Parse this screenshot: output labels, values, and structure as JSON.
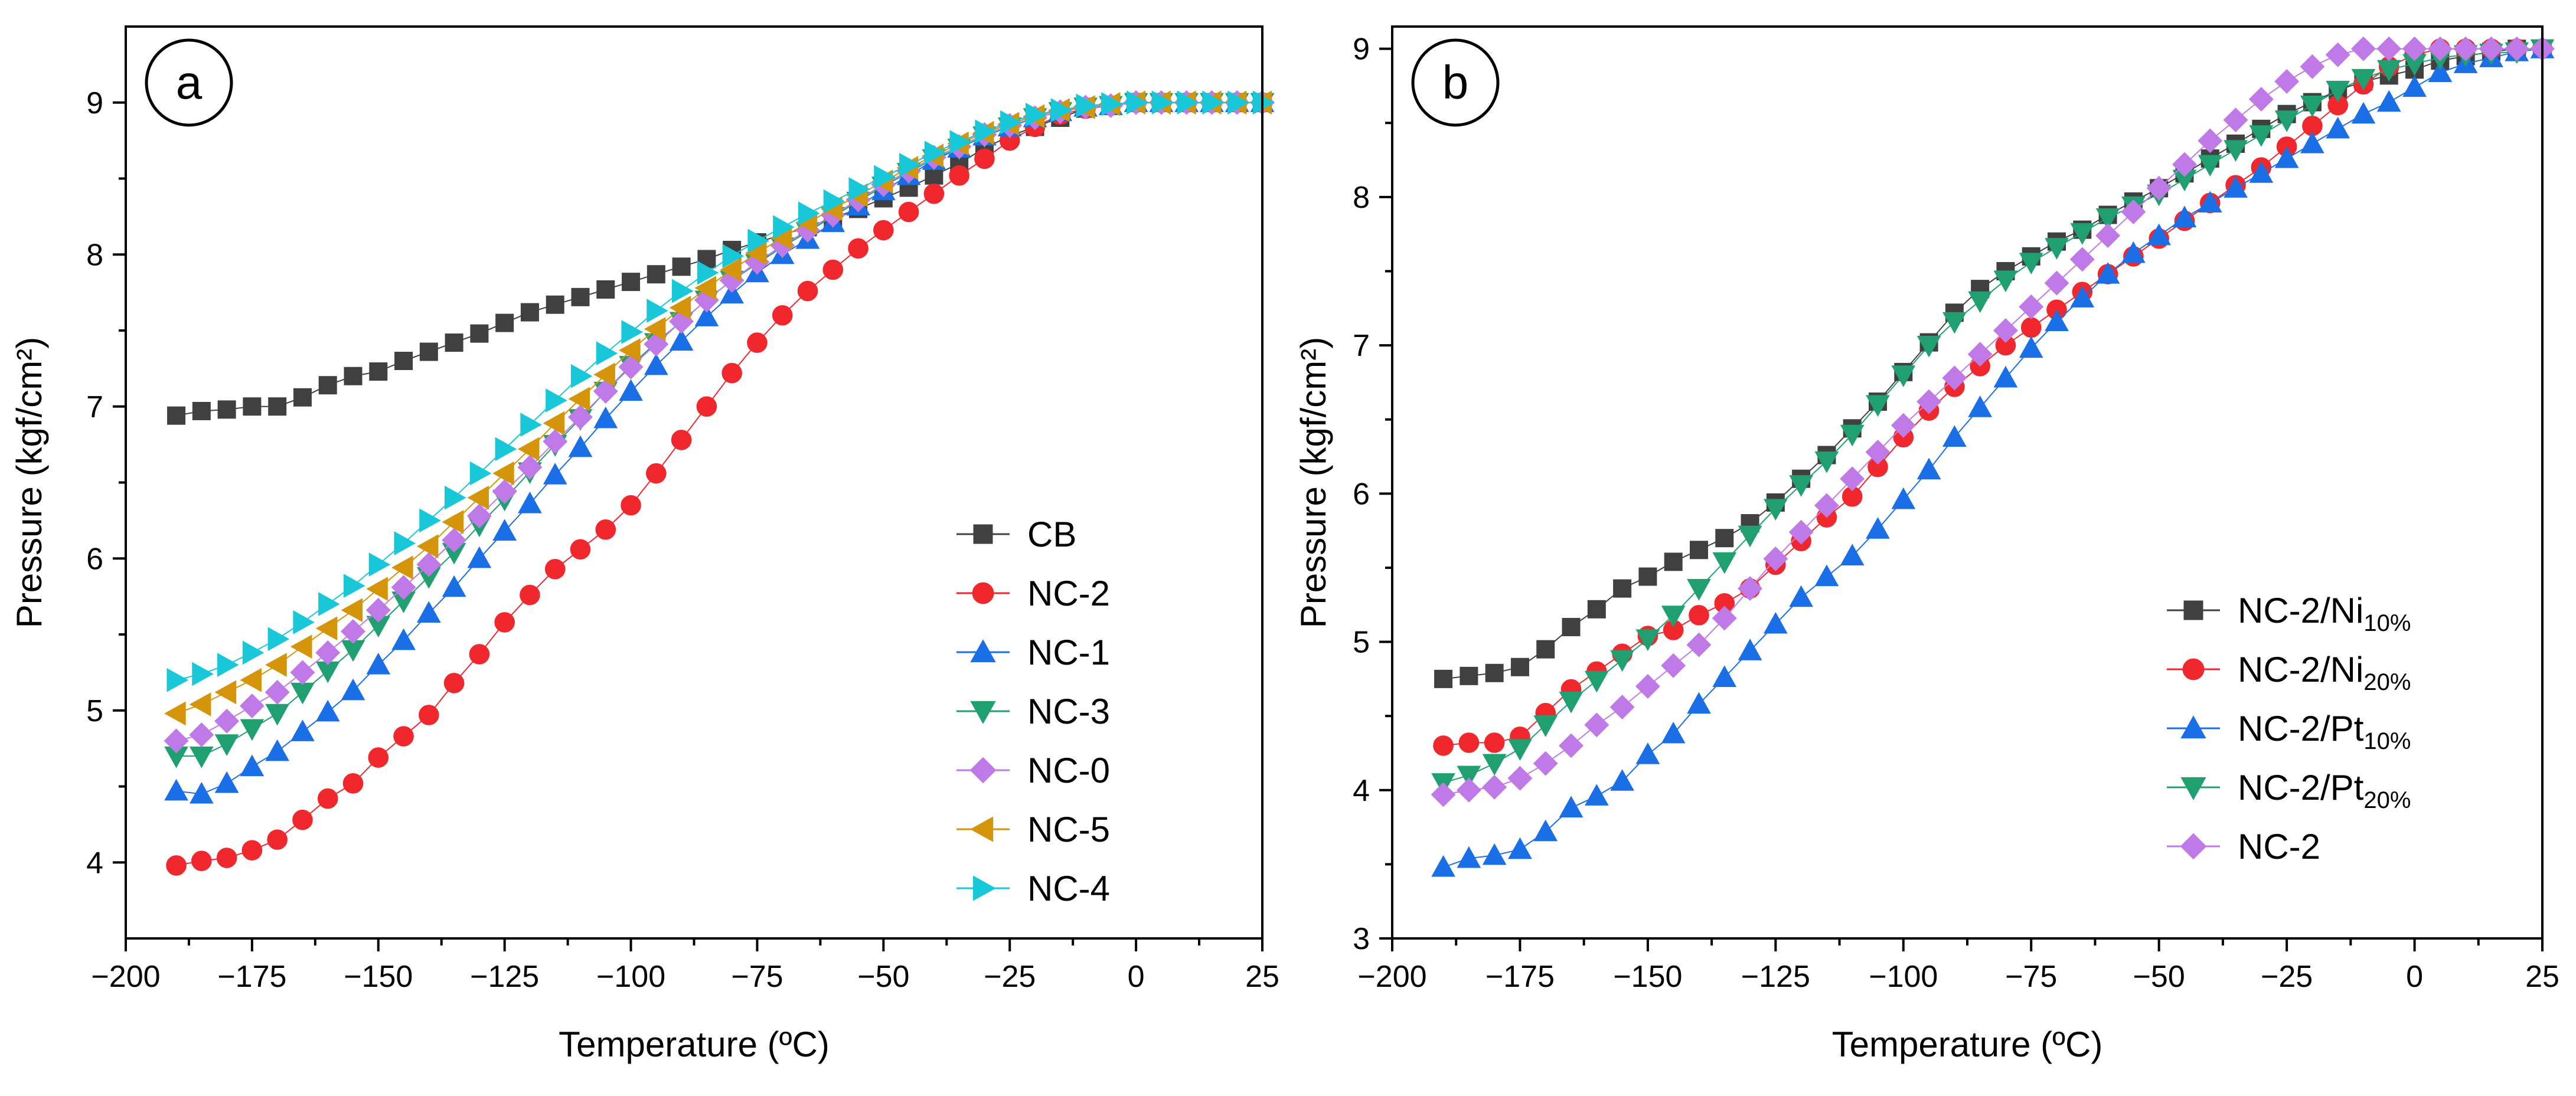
{
  "chart_data": [
    {
      "type": "line",
      "panel_label": "a",
      "xlabel": "Temperature (ºC)",
      "ylabel": "Pressure (kgf/cm²)",
      "xlim": [
        -200,
        25
      ],
      "ylim": [
        3.5,
        9.5
      ],
      "x_ticks": [
        -200,
        -175,
        -150,
        -125,
        -100,
        -75,
        -50,
        -25,
        0,
        25
      ],
      "x_tick_labels": [
        "−200",
        "−175",
        "−150",
        "−125",
        "−100",
        "−75",
        "−50",
        "−25",
        "0",
        "25"
      ],
      "y_ticks": [
        4,
        5,
        6,
        7,
        8,
        9
      ],
      "y_tick_labels": [
        "4",
        "5",
        "6",
        "7",
        "8",
        "9"
      ],
      "legend_position": "bottom-right",
      "x": [
        -190,
        -185,
        -180,
        -175,
        -170,
        -165,
        -160,
        -155,
        -150,
        -145,
        -140,
        -135,
        -130,
        -125,
        -120,
        -115,
        -110,
        -105,
        -100,
        -95,
        -90,
        -85,
        -80,
        -75,
        -70,
        -65,
        -60,
        -55,
        -50,
        -45,
        -40,
        -35,
        -30,
        -25,
        -20,
        -15,
        -10,
        -5,
        0,
        5,
        10,
        15,
        20,
        25
      ],
      "series": [
        {
          "name": "CB",
          "label": "CB",
          "sub": "",
          "color": "#404040",
          "marker": "square",
          "values": [
            6.94,
            6.97,
            6.98,
            7.0,
            7.0,
            7.06,
            7.14,
            7.2,
            7.23,
            7.3,
            7.36,
            7.42,
            7.48,
            7.55,
            7.62,
            7.67,
            7.72,
            7.77,
            7.82,
            7.87,
            7.92,
            7.97,
            8.03,
            8.08,
            8.13,
            8.18,
            8.24,
            8.3,
            8.37,
            8.44,
            8.52,
            8.6,
            8.7,
            8.78,
            8.84,
            8.9,
            8.96,
            8.98,
            9.0,
            9.0,
            9.0,
            9.0,
            9.0,
            9.0
          ]
        },
        {
          "name": "NC-2",
          "label": "NC-2",
          "sub": "",
          "color": "#f0282d",
          "marker": "circle",
          "values": [
            3.98,
            4.01,
            4.03,
            4.08,
            4.15,
            4.28,
            4.42,
            4.52,
            4.69,
            4.83,
            4.97,
            5.18,
            5.37,
            5.58,
            5.76,
            5.93,
            6.06,
            6.19,
            6.35,
            6.56,
            6.78,
            7.0,
            7.22,
            7.42,
            7.6,
            7.76,
            7.9,
            8.04,
            8.16,
            8.28,
            8.4,
            8.52,
            8.63,
            8.75,
            8.84,
            8.92,
            8.96,
            8.98,
            9.0,
            9.0,
            9.0,
            9.0,
            9.0,
            9.0
          ]
        },
        {
          "name": "NC-1",
          "label": "NC-1",
          "sub": "",
          "color": "#1a6ee6",
          "marker": "triangle-up",
          "values": [
            4.47,
            4.45,
            4.52,
            4.63,
            4.73,
            4.86,
            4.99,
            5.13,
            5.3,
            5.46,
            5.64,
            5.81,
            6.0,
            6.18,
            6.36,
            6.55,
            6.73,
            6.92,
            7.1,
            7.27,
            7.43,
            7.59,
            7.74,
            7.88,
            8.0,
            8.1,
            8.21,
            8.32,
            8.42,
            8.52,
            8.62,
            8.7,
            8.78,
            8.84,
            8.9,
            8.94,
            8.97,
            8.98,
            9.0,
            9.0,
            9.0,
            9.0,
            9.0,
            9.0
          ]
        },
        {
          "name": "NC-3",
          "label": "NC-3",
          "sub": "",
          "color": "#20a070",
          "marker": "triangle-down",
          "values": [
            4.7,
            4.7,
            4.78,
            4.88,
            4.98,
            5.12,
            5.26,
            5.4,
            5.56,
            5.72,
            5.88,
            6.04,
            6.22,
            6.39,
            6.57,
            6.75,
            6.92,
            7.1,
            7.27,
            7.42,
            7.56,
            7.7,
            7.83,
            7.94,
            8.05,
            8.15,
            8.25,
            8.35,
            8.45,
            8.54,
            8.63,
            8.7,
            8.78,
            8.84,
            8.9,
            8.94,
            8.97,
            8.98,
            9.0,
            9.0,
            9.0,
            9.0,
            9.0,
            9.0
          ]
        },
        {
          "name": "NC-0",
          "label": "NC-0",
          "sub": "",
          "color": "#c07ae8",
          "marker": "diamond",
          "values": [
            4.8,
            4.84,
            4.93,
            5.03,
            5.12,
            5.25,
            5.38,
            5.52,
            5.66,
            5.81,
            5.96,
            6.12,
            6.28,
            6.44,
            6.6,
            6.77,
            6.93,
            7.1,
            7.26,
            7.41,
            7.56,
            7.7,
            7.83,
            7.95,
            8.06,
            8.16,
            8.26,
            8.36,
            8.46,
            8.55,
            8.64,
            8.71,
            8.79,
            8.85,
            8.9,
            8.94,
            8.97,
            8.98,
            9.0,
            9.0,
            9.0,
            9.0,
            9.0,
            9.0
          ]
        },
        {
          "name": "NC-5",
          "label": "NC-5",
          "sub": "",
          "color": "#d4950a",
          "marker": "triangle-left",
          "values": [
            4.98,
            5.04,
            5.12,
            5.2,
            5.3,
            5.42,
            5.54,
            5.66,
            5.8,
            5.94,
            6.08,
            6.24,
            6.4,
            6.56,
            6.72,
            6.89,
            7.05,
            7.21,
            7.37,
            7.51,
            7.65,
            7.78,
            7.9,
            8.01,
            8.11,
            8.21,
            8.3,
            8.39,
            8.48,
            8.57,
            8.65,
            8.73,
            8.8,
            8.86,
            8.91,
            8.95,
            8.97,
            8.99,
            9.0,
            9.0,
            9.0,
            9.0,
            9.0,
            9.0
          ]
        },
        {
          "name": "NC-4",
          "label": "NC-4",
          "sub": "",
          "color": "#18c8d8",
          "marker": "triangle-right",
          "values": [
            5.2,
            5.24,
            5.3,
            5.38,
            5.47,
            5.58,
            5.7,
            5.82,
            5.96,
            6.1,
            6.25,
            6.4,
            6.56,
            6.72,
            6.88,
            7.04,
            7.2,
            7.35,
            7.49,
            7.63,
            7.76,
            7.88,
            7.99,
            8.09,
            8.18,
            8.27,
            8.35,
            8.43,
            8.51,
            8.59,
            8.67,
            8.74,
            8.81,
            8.87,
            8.92,
            8.95,
            8.98,
            8.99,
            9.0,
            9.0,
            9.0,
            9.0,
            9.0,
            9.0
          ]
        }
      ]
    },
    {
      "type": "line",
      "panel_label": "b",
      "xlabel": "Temperature (ºC)",
      "ylabel": "Pressure (kgf/cm²)",
      "xlim": [
        -200,
        25
      ],
      "ylim": [
        3,
        9.15
      ],
      "x_ticks": [
        -200,
        -175,
        -150,
        -125,
        -100,
        -75,
        -50,
        -25,
        0,
        25
      ],
      "x_tick_labels": [
        "−200",
        "−175",
        "−150",
        "−125",
        "−100",
        "−75",
        "−50",
        "−25",
        "0",
        "25"
      ],
      "y_ticks": [
        3,
        4,
        5,
        6,
        7,
        8,
        9
      ],
      "y_tick_labels": [
        "3",
        "4",
        "5",
        "6",
        "7",
        "8",
        "9"
      ],
      "legend_position": "bottom-right",
      "x": [
        -190,
        -185,
        -180,
        -175,
        -170,
        -165,
        -160,
        -155,
        -150,
        -145,
        -140,
        -135,
        -130,
        -125,
        -120,
        -115,
        -110,
        -105,
        -100,
        -95,
        -90,
        -85,
        -80,
        -75,
        -70,
        -65,
        -60,
        -55,
        -50,
        -45,
        -40,
        -35,
        -30,
        -25,
        -20,
        -15,
        -10,
        -5,
        0,
        5,
        10,
        15,
        20,
        25
      ],
      "series": [
        {
          "name": "NC-2/Ni10%",
          "label": "NC-2/Ni",
          "sub": "10%",
          "color": "#404040",
          "marker": "square",
          "values": [
            4.75,
            4.77,
            4.79,
            4.83,
            4.95,
            5.1,
            5.22,
            5.36,
            5.44,
            5.54,
            5.62,
            5.7,
            5.8,
            5.94,
            6.1,
            6.26,
            6.44,
            6.62,
            6.82,
            7.02,
            7.22,
            7.38,
            7.5,
            7.6,
            7.7,
            7.78,
            7.88,
            7.97,
            8.06,
            8.16,
            8.26,
            8.36,
            8.46,
            8.56,
            8.64,
            8.72,
            8.78,
            8.82,
            8.86,
            8.92,
            8.95,
            8.98,
            9.0,
            9.0
          ]
        },
        {
          "name": "NC-2/Ni20%",
          "label": "NC-2/Ni",
          "sub": "20%",
          "color": "#f0282d",
          "marker": "circle",
          "values": [
            4.3,
            4.32,
            4.32,
            4.36,
            4.52,
            4.68,
            4.8,
            4.92,
            5.04,
            5.08,
            5.18,
            5.26,
            5.36,
            5.52,
            5.68,
            5.84,
            5.98,
            6.18,
            6.38,
            6.56,
            6.72,
            6.86,
            7.0,
            7.12,
            7.24,
            7.36,
            7.48,
            7.6,
            7.72,
            7.84,
            7.96,
            8.08,
            8.2,
            8.34,
            8.48,
            8.62,
            8.76,
            8.88,
            8.96,
            9.0,
            9.0,
            9.0,
            9.0,
            9.0
          ]
        },
        {
          "name": "NC-2/Pt10%",
          "label": "NC-2/Pt",
          "sub": "10%",
          "color": "#1a6ee6",
          "marker": "triangle-up",
          "values": [
            3.48,
            3.54,
            3.56,
            3.6,
            3.72,
            3.88,
            3.96,
            4.06,
            4.24,
            4.38,
            4.58,
            4.76,
            4.94,
            5.12,
            5.3,
            5.44,
            5.58,
            5.76,
            5.96,
            6.16,
            6.38,
            6.58,
            6.78,
            6.98,
            7.16,
            7.32,
            7.48,
            7.62,
            7.74,
            7.86,
            7.96,
            8.06,
            8.16,
            8.26,
            8.36,
            8.46,
            8.56,
            8.64,
            8.74,
            8.84,
            8.9,
            8.94,
            8.98,
            9.0
          ]
        },
        {
          "name": "NC-2/Pt20%",
          "label": "NC-2/Pt",
          "sub": "20%",
          "color": "#20a070",
          "marker": "triangle-down",
          "values": [
            4.05,
            4.1,
            4.18,
            4.28,
            4.44,
            4.6,
            4.74,
            4.88,
            5.02,
            5.18,
            5.36,
            5.54,
            5.72,
            5.9,
            6.06,
            6.22,
            6.4,
            6.6,
            6.8,
            7.0,
            7.16,
            7.3,
            7.44,
            7.56,
            7.66,
            7.76,
            7.86,
            7.94,
            8.02,
            8.12,
            8.22,
            8.32,
            8.42,
            8.52,
            8.62,
            8.72,
            8.8,
            8.86,
            8.9,
            8.94,
            8.96,
            8.97,
            8.98,
            9.0
          ]
        },
        {
          "name": "NC-2",
          "label": "NC-2",
          "sub": "",
          "color": "#c07ae8",
          "marker": "diamond",
          "values": [
            3.97,
            4.0,
            4.02,
            4.08,
            4.18,
            4.3,
            4.44,
            4.56,
            4.7,
            4.84,
            4.98,
            5.16,
            5.36,
            5.56,
            5.74,
            5.92,
            6.1,
            6.28,
            6.46,
            6.62,
            6.78,
            6.94,
            7.1,
            7.26,
            7.42,
            7.58,
            7.74,
            7.9,
            8.06,
            8.22,
            8.38,
            8.52,
            8.66,
            8.78,
            8.88,
            8.96,
            9.0,
            9.0,
            9.0,
            9.0,
            9.0,
            9.0,
            9.0,
            9.0
          ]
        }
      ]
    }
  ]
}
